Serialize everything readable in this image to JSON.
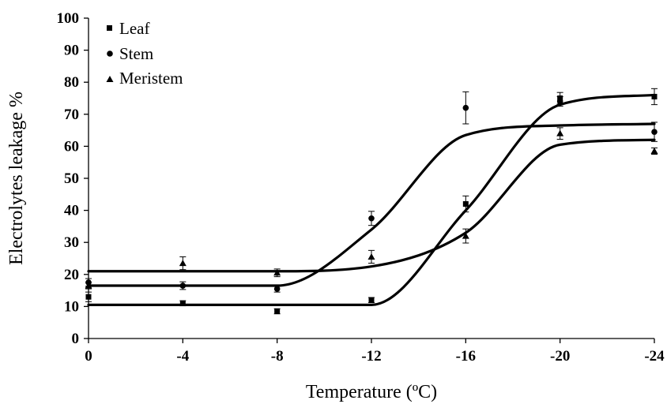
{
  "chart_data": {
    "type": "line",
    "xlabel": "Temperature (ºC)",
    "ylabel": "Electrolytes leakage %",
    "x": [
      0,
      -4,
      -8,
      -12,
      -16,
      -20,
      -24
    ],
    "x_tick_labels": [
      "0",
      "-4",
      "-8",
      "-12",
      "-16",
      "-20",
      "-24"
    ],
    "ylim": [
      0,
      100
    ],
    "y_ticks": [
      0,
      10,
      20,
      30,
      40,
      50,
      60,
      70,
      80,
      90,
      100
    ],
    "grid": false,
    "legend_position": "top-left",
    "series": [
      {
        "name": "Leaf",
        "marker": "square",
        "values": [
          13,
          11,
          8.5,
          12,
          42,
          75,
          75.5
        ],
        "errors": [
          1.5,
          0.8,
          0.8,
          0.8,
          2.5,
          1.8,
          2.5
        ],
        "fit": [
          10.5,
          10.5,
          10.5,
          10.5,
          40,
          73,
          76
        ]
      },
      {
        "name": "Stem",
        "marker": "circle",
        "values": [
          17.5,
          16.5,
          15.5,
          37.5,
          72,
          74,
          64.5
        ],
        "errors": [
          1.2,
          1.2,
          1.0,
          2.2,
          5,
          1.5,
          3
        ],
        "fit": [
          16.5,
          16.5,
          16.5,
          34,
          63.5,
          66.5,
          67
        ]
      },
      {
        "name": "Meristem",
        "marker": "triangle",
        "values": [
          16.5,
          23.5,
          20.5,
          25.5,
          32,
          64,
          58.5
        ],
        "errors": [
          1.0,
          2.0,
          1.2,
          2.0,
          2.2,
          1.8,
          1.0
        ],
        "fit": [
          21,
          21,
          21,
          22.5,
          33,
          60.5,
          62
        ]
      }
    ]
  }
}
